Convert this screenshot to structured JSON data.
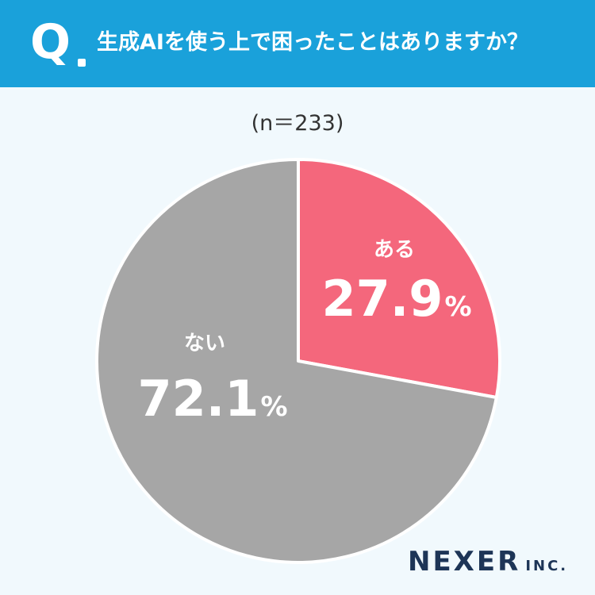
{
  "header": {
    "q_mark": "Q",
    "question": "生成AIを使う上で困ったことはありますか？"
  },
  "sample_size": "(n＝233)",
  "chart_data": {
    "type": "pie",
    "categories": [
      "ある",
      "ない"
    ],
    "values": [
      27.9,
      72.1
    ],
    "value_labels": [
      "27.9",
      "72.1"
    ],
    "unit": "%",
    "colors": [
      "#f4677c",
      "#a6a6a6"
    ],
    "start": "12 o'clock",
    "direction": "clockwise"
  },
  "logo": {
    "main": "NEXER",
    "sub": "INC."
  },
  "colors": {
    "header": "#1aa1da",
    "background": "#f1f9fd",
    "logo": "#1d3557"
  }
}
